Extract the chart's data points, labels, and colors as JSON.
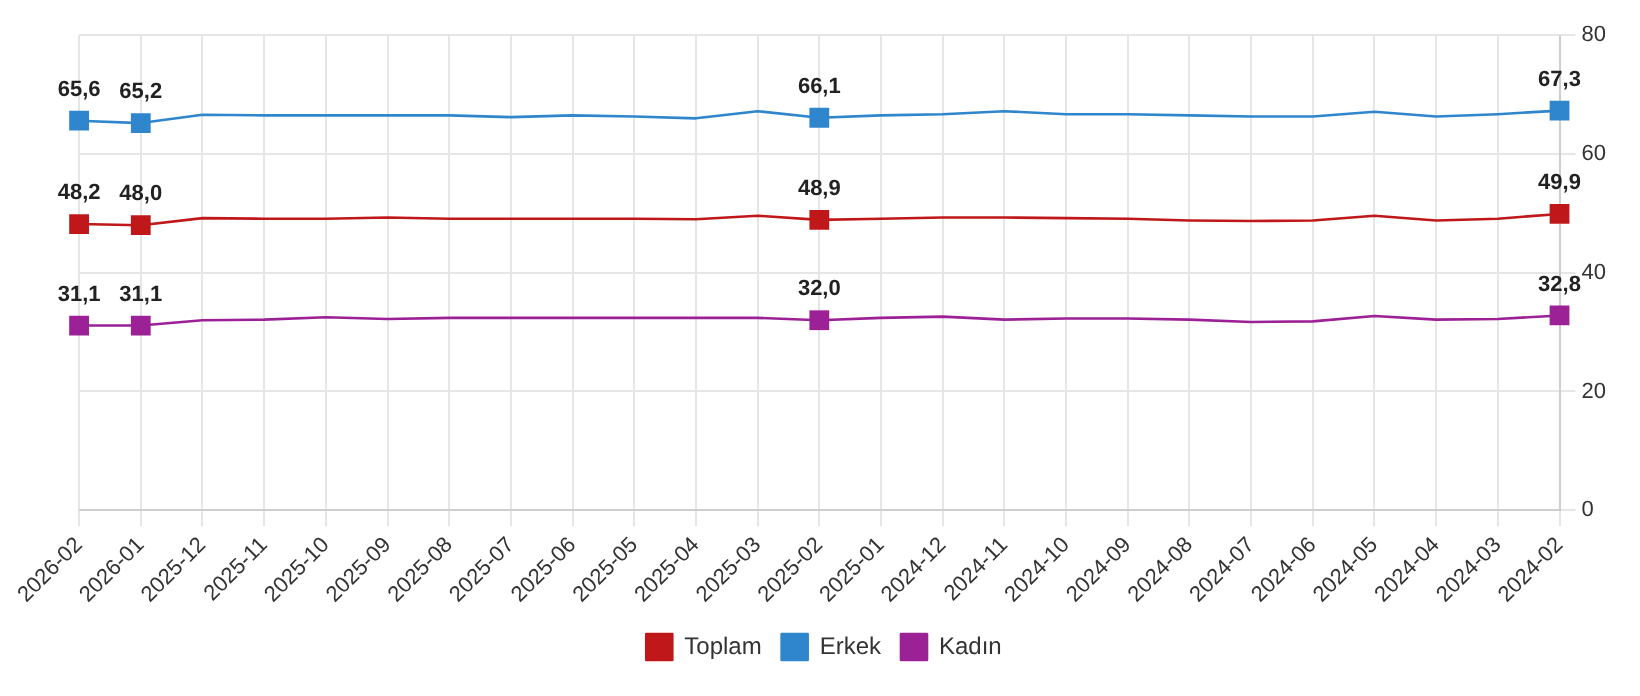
{
  "chart_data": {
    "type": "line",
    "categories": [
      "2026-02",
      "2026-01",
      "2025-12",
      "2025-11",
      "2025-10",
      "2025-09",
      "2025-08",
      "2025-07",
      "2025-06",
      "2025-05",
      "2025-04",
      "2025-03",
      "2025-02",
      "2025-01",
      "2024-12",
      "2024-11",
      "2024-10",
      "2024-09",
      "2024-08",
      "2024-07",
      "2024-06",
      "2024-05",
      "2024-04",
      "2024-03",
      "2024-02"
    ],
    "series": [
      {
        "name": "Toplam",
        "color": "#c0181a",
        "values": [
          48.2,
          48.0,
          49.2,
          49.1,
          49.1,
          49.3,
          49.1,
          49.1,
          49.1,
          49.1,
          49.0,
          49.6,
          48.9,
          49.1,
          49.3,
          49.3,
          49.2,
          49.1,
          48.8,
          48.7,
          48.8,
          49.6,
          48.8,
          49.1,
          49.9
        ],
        "value_labels": [
          "48,2",
          "48,0",
          null,
          null,
          null,
          null,
          null,
          null,
          null,
          null,
          null,
          null,
          "48,9",
          null,
          null,
          null,
          null,
          null,
          null,
          null,
          null,
          null,
          null,
          null,
          "49,9"
        ]
      },
      {
        "name": "Erkek",
        "color": "#2f86cc",
        "values": [
          65.6,
          65.2,
          66.6,
          66.5,
          66.5,
          66.5,
          66.5,
          66.2,
          66.5,
          66.3,
          66.0,
          67.2,
          66.1,
          66.5,
          66.7,
          67.2,
          66.7,
          66.7,
          66.5,
          66.3,
          66.3,
          67.1,
          66.3,
          66.7,
          67.3
        ],
        "value_labels": [
          "65,6",
          "65,2",
          null,
          null,
          null,
          null,
          null,
          null,
          null,
          null,
          null,
          null,
          "66,1",
          null,
          null,
          null,
          null,
          null,
          null,
          null,
          null,
          null,
          null,
          null,
          "67,3"
        ]
      },
      {
        "name": "Kadın",
        "color": "#9c2196",
        "values": [
          31.1,
          31.1,
          32.0,
          32.1,
          32.5,
          32.2,
          32.4,
          32.4,
          32.4,
          32.4,
          32.4,
          32.4,
          32.0,
          32.4,
          32.6,
          32.1,
          32.3,
          32.3,
          32.1,
          31.7,
          31.8,
          32.7,
          32.1,
          32.2,
          32.8
        ],
        "value_labels": [
          "31,1",
          "31,1",
          null,
          null,
          null,
          null,
          null,
          null,
          null,
          null,
          null,
          null,
          "32,0",
          null,
          null,
          null,
          null,
          null,
          null,
          null,
          null,
          null,
          null,
          null,
          "32,8"
        ]
      }
    ],
    "ylim": [
      0,
      80
    ],
    "yticks": [
      0,
      20,
      40,
      60,
      80
    ],
    "grid": true,
    "legend": "bottom",
    "line_style": "solid"
  }
}
